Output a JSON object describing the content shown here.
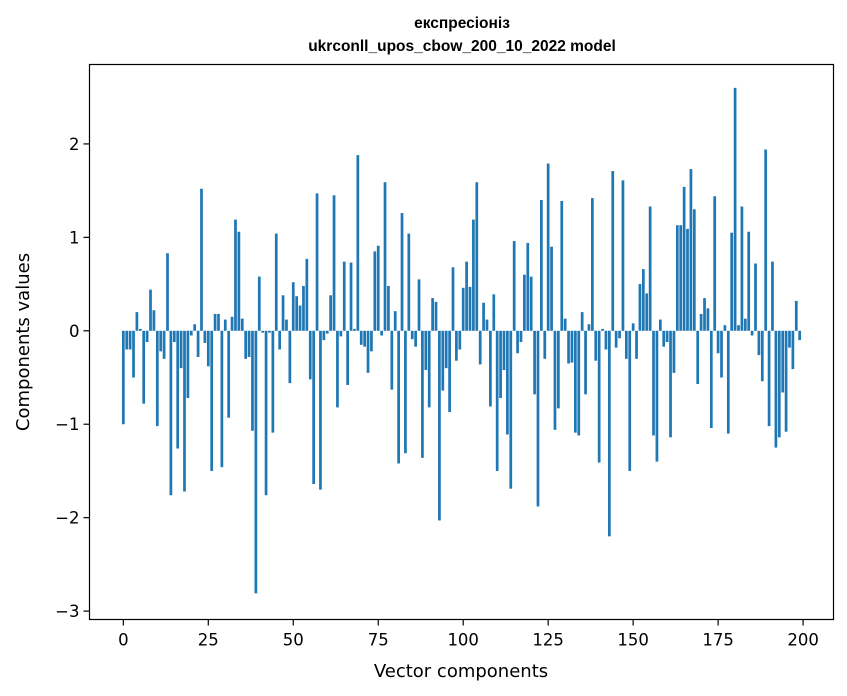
{
  "chart_data": {
    "type": "bar",
    "title_line1": "експресіоніз",
    "title_line2": "ukrconll_upos_cbow_200_10_2022 model",
    "xlabel": "Vector components",
    "ylabel": "Components values",
    "xlim": [
      -9.95,
      208.95
    ],
    "ylim": [
      -3.09,
      2.85
    ],
    "xticks": [
      0,
      25,
      50,
      75,
      100,
      125,
      150,
      175,
      200
    ],
    "xtick_labels": [
      "0",
      "25",
      "50",
      "75",
      "100",
      "125",
      "150",
      "175",
      "200"
    ],
    "yticks": [
      -3,
      -2,
      -1,
      0,
      1,
      2
    ],
    "ytick_labels": [
      "−3",
      "−2",
      "−1",
      "0",
      "1",
      "2"
    ],
    "bar_color": "#1f77b4",
    "grid": false,
    "values": [
      -1.0,
      -0.2,
      -0.2,
      -0.5,
      0.2,
      0.02,
      -0.78,
      -0.12,
      0.44,
      0.22,
      -1.02,
      -0.22,
      -0.3,
      0.83,
      -1.76,
      -0.12,
      -1.26,
      -0.4,
      -1.72,
      -0.72,
      -0.05,
      0.07,
      -0.28,
      1.52,
      -0.13,
      -0.38,
      -1.5,
      0.18,
      0.18,
      -1.46,
      0.12,
      -0.93,
      0.15,
      1.19,
      1.06,
      0.13,
      -0.3,
      -0.28,
      -1.07,
      -2.81,
      0.58,
      -0.02,
      -1.76,
      -0.02,
      -1.09,
      1.04,
      -0.2,
      0.38,
      0.12,
      -0.56,
      0.52,
      0.37,
      0.27,
      0.48,
      0.77,
      -0.52,
      -1.64,
      1.47,
      -1.7,
      -0.1,
      -0.03,
      0.38,
      1.45,
      -0.82,
      -0.06,
      0.74,
      -0.58,
      0.73,
      0.02,
      1.88,
      -0.15,
      -0.17,
      -0.45,
      -0.22,
      0.85,
      0.91,
      -0.05,
      1.59,
      0.48,
      -0.63,
      0.21,
      -1.42,
      1.26,
      -1.31,
      1.04,
      -0.09,
      -0.17,
      0.55,
      -1.36,
      -0.42,
      -0.82,
      0.35,
      0.31,
      -2.03,
      -0.64,
      -0.4,
      -0.87,
      0.68,
      -0.32,
      -0.2,
      0.46,
      0.74,
      0.47,
      1.19,
      1.59,
      -0.36,
      0.3,
      0.12,
      -0.81,
      0.39,
      -1.5,
      -0.72,
      -0.42,
      -1.11,
      -1.69,
      0.96,
      -0.24,
      -0.12,
      0.6,
      0.94,
      0.58,
      -0.68,
      -1.88,
      1.4,
      -0.3,
      1.79,
      0.9,
      -1.06,
      -0.83,
      1.39,
      0.13,
      -0.35,
      -0.34,
      -1.09,
      -1.12,
      0.2,
      -0.68,
      0.07,
      1.42,
      -0.32,
      -1.41,
      0.02,
      -0.2,
      -2.2,
      1.71,
      -0.18,
      -0.08,
      1.61,
      -0.3,
      -1.5,
      0.08,
      -0.3,
      0.5,
      0.66,
      0.4,
      1.33,
      -1.12,
      -1.4,
      0.12,
      -0.17,
      -0.12,
      -1.14,
      -0.45,
      1.13,
      1.13,
      1.54,
      1.09,
      1.73,
      1.3,
      -0.57,
      0.18,
      0.35,
      0.24,
      -1.04,
      1.44,
      -0.24,
      -0.5,
      0.06,
      -1.1,
      1.05,
      2.6,
      0.06,
      1.33,
      0.13,
      1.06,
      -0.05,
      0.72,
      -0.26,
      -0.54,
      1.94,
      -1.02,
      0.74,
      -1.25,
      -1.14,
      -0.66,
      -1.08,
      -0.18,
      -0.41,
      0.32,
      -0.1
    ]
  }
}
